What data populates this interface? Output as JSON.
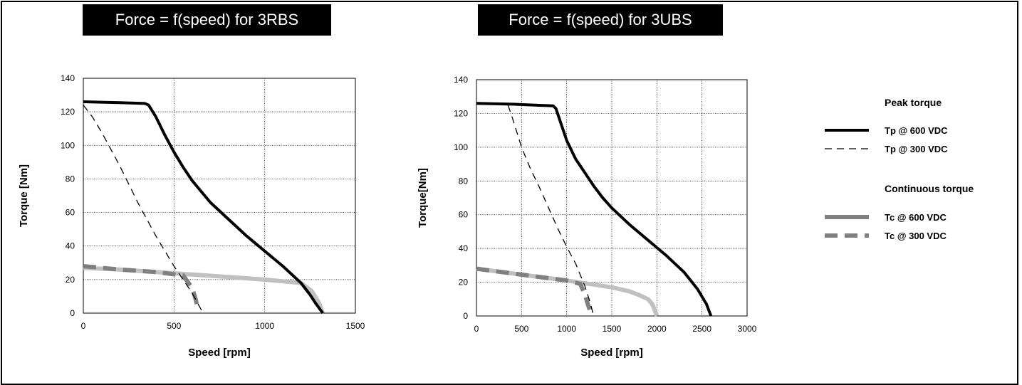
{
  "chart_data": [
    {
      "type": "line",
      "title": "Force = f(speed) for 3RBS",
      "xlabel": "Speed [rpm]",
      "ylabel": "Torque [Nm]",
      "xlim": [
        0,
        1500
      ],
      "ylim": [
        0,
        140
      ],
      "xticks": [
        "0",
        "500",
        "1000",
        "1500"
      ],
      "yticks": [
        "0",
        "20",
        "40",
        "60",
        "80",
        "100",
        "120",
        "140"
      ],
      "grid": true,
      "series": [
        {
          "name": "Tc @ 600 VDC",
          "style": "tc600",
          "x": [
            0,
            200,
            400,
            600,
            800,
            1000,
            1200,
            1260,
            1300,
            1320
          ],
          "y": [
            27,
            26,
            24.5,
            23,
            21.5,
            20,
            18,
            13,
            6,
            0
          ]
        },
        {
          "name": "Tc @ 300 VDC",
          "style": "tc300",
          "x": [
            0,
            200,
            400,
            550,
            600,
            620,
            630
          ],
          "y": [
            28,
            26,
            24.5,
            22.5,
            15,
            8,
            3
          ]
        },
        {
          "name": "Tp @ 300 VDC",
          "style": "tp300",
          "x": [
            0,
            50,
            100,
            200,
            300,
            400,
            500,
            600,
            640,
            660
          ],
          "y": [
            124,
            117,
            108,
            88,
            66,
            46,
            28,
            12,
            4,
            0
          ]
        },
        {
          "name": "Tp @ 600 VDC",
          "style": "tp600",
          "x": [
            0,
            200,
            340,
            360,
            400,
            450,
            500,
            550,
            600,
            700,
            800,
            900,
            1000,
            1100,
            1200,
            1250,
            1280,
            1300,
            1320
          ],
          "y": [
            126,
            125.5,
            125,
            124,
            117,
            106,
            96,
            87,
            79,
            66,
            56,
            46,
            37,
            28,
            18,
            11,
            6,
            3,
            0
          ]
        }
      ]
    },
    {
      "type": "line",
      "title": "Force = f(speed) for 3UBS",
      "xlabel": "Speed [rpm]",
      "ylabel": "Torque[Nm]",
      "xlim": [
        0,
        3000
      ],
      "ylim": [
        0,
        140
      ],
      "xticks": [
        "0",
        "500",
        "1000",
        "1500",
        "2000",
        "2500",
        "3000"
      ],
      "yticks": [
        "0",
        "20",
        "40",
        "60",
        "80",
        "100",
        "120",
        "140"
      ],
      "grid": true,
      "series": [
        {
          "name": "Tc @ 600 VDC",
          "style": "tc600",
          "x": [
            0,
            500,
            1000,
            1500,
            1700,
            1800,
            1900,
            1950,
            1980,
            2000
          ],
          "y": [
            28,
            24.5,
            21,
            17,
            14.5,
            12.5,
            10,
            7,
            3,
            0
          ]
        },
        {
          "name": "Tc @ 300 VDC",
          "style": "tc300",
          "x": [
            0,
            500,
            1000,
            1150,
            1200,
            1240,
            1260
          ],
          "y": [
            28,
            24.5,
            21,
            19,
            13,
            6,
            3
          ]
        },
        {
          "name": "Tp @ 300 VDC",
          "style": "tp300",
          "x": [
            350,
            400,
            500,
            600,
            700,
            800,
            900,
            1000,
            1100,
            1200,
            1260,
            1300
          ],
          "y": [
            125,
            117,
            100,
            87,
            76,
            64,
            52,
            41,
            31,
            18,
            8,
            0
          ]
        },
        {
          "name": "Tp @ 600 VDC",
          "style": "tp600",
          "x": [
            0,
            400,
            850,
            880,
            950,
            1000,
            1100,
            1200,
            1300,
            1400,
            1500,
            1700,
            1900,
            2100,
            2300,
            2450,
            2550,
            2600
          ],
          "y": [
            126,
            125.5,
            124.5,
            123,
            112,
            104,
            93,
            85,
            77,
            70,
            64,
            54,
            45,
            36,
            26,
            16,
            7,
            0
          ]
        }
      ]
    }
  ],
  "legend": {
    "peak_heading": "Peak torque",
    "continuous_heading": "Continuous torque",
    "items": [
      {
        "label": "Tp @ 600 VDC",
        "style": "tp600"
      },
      {
        "label": "Tp @ 300 VDC",
        "style": "tp300"
      },
      {
        "label": "Tc @ 600 VDC",
        "style": "tc600"
      },
      {
        "label": "Tc @ 300 VDC",
        "style": "tc300"
      }
    ]
  },
  "colors": {
    "tp": "#000000",
    "tc600": "#c0c0c0",
    "tc300": "#808080"
  }
}
